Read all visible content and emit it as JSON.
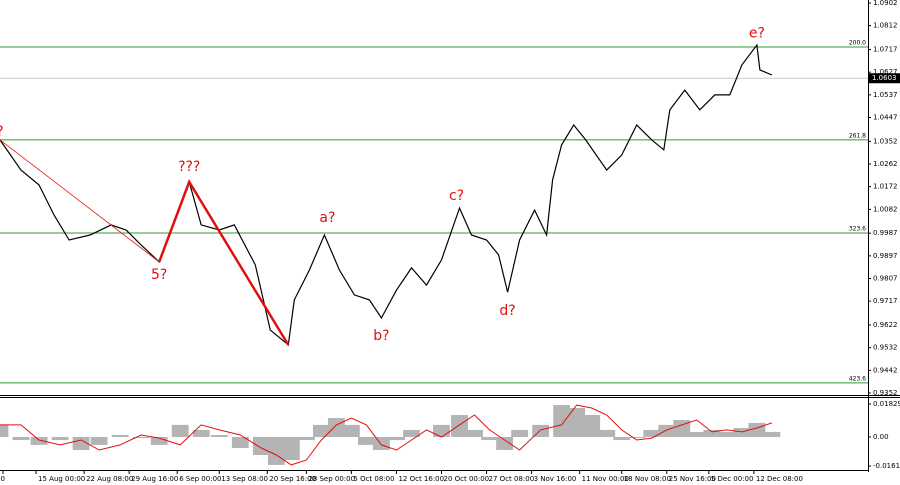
{
  "chart_data": [
    {
      "type": "line",
      "xlim": [
        0,
        289
      ],
      "ylim": [
        0.9344,
        1.0914
      ],
      "yticks": [
        1.0902,
        1.0812,
        1.0717,
        1.0627,
        1.0537,
        1.0447,
        1.0352,
        1.0262,
        1.0172,
        1.0082,
        0.9987,
        0.9897,
        0.9807,
        0.9717,
        0.9622,
        0.9532,
        0.9442,
        0.9352
      ],
      "xticks": [
        {
          "value": 1,
          "label": "00"
        },
        {
          "value": 12,
          "label": "15 Aug 00:00"
        },
        {
          "value": 28,
          "label": "22 Aug 08:00"
        },
        {
          "value": 43,
          "label": "29 Aug 16:00"
        },
        {
          "value": 59,
          "label": "6 Sep 00:00"
        },
        {
          "value": 73,
          "label": "13 Sep 08:00"
        },
        {
          "value": 89,
          "label": "20 Sep 16:00"
        },
        {
          "value": 102,
          "label": "28 Sep 00:00"
        },
        {
          "value": 117,
          "label": "5 Oct 08:00"
        },
        {
          "value": 132,
          "label": "12 Oct 16:00"
        },
        {
          "value": 147,
          "label": "20 Oct 00:00"
        },
        {
          "value": 162,
          "label": "27 Oct 08:00"
        },
        {
          "value": 177,
          "label": "3 Nov 16:00"
        },
        {
          "value": 193,
          "label": "11 Nov 00:00"
        },
        {
          "value": 207,
          "label": "18 Nov 08:00"
        },
        {
          "value": 222,
          "label": "25 Nov 16:00"
        },
        {
          "value": 236,
          "label": "5 Dec 00:00"
        },
        {
          "value": 251,
          "label": "12 Dec 08:00"
        }
      ],
      "x": [
        0,
        7,
        13,
        18,
        23,
        30,
        37,
        42,
        47,
        53,
        57,
        63,
        67,
        73,
        78,
        85,
        90,
        96,
        98,
        103,
        108,
        113,
        118,
        123,
        127,
        132,
        137,
        142,
        147,
        153,
        157,
        162,
        166,
        169,
        173,
        178,
        182,
        184,
        187,
        191,
        195,
        202,
        207,
        212,
        217,
        221,
        223,
        228,
        233,
        238,
        243,
        247,
        252,
        253,
        257
      ],
      "series": [
        {
          "color": "#000000",
          "values": [
            1.0358,
            1.0238,
            1.0179,
            1.0059,
            0.996,
            0.998,
            1.002,
            1.0,
            0.994,
            0.9873,
            1.0,
            1.0191,
            1.002,
            1.0,
            1.002,
            0.9861,
            0.9602,
            0.9543,
            0.9722,
            0.9841,
            0.998,
            0.9841,
            0.9742,
            0.9722,
            0.965,
            0.9761,
            0.9849,
            0.9781,
            0.9881,
            1.0087,
            0.998,
            0.996,
            0.9901,
            0.9753,
            0.996,
            1.0079,
            0.998,
            1.0199,
            1.0338,
            1.0417,
            1.0358,
            1.0238,
            1.0298,
            1.0417,
            1.0358,
            1.0318,
            1.0477,
            1.0556,
            1.0477,
            1.0537,
            1.0537,
            1.0656,
            1.0735,
            1.0636,
            1.0616
          ]
        }
      ],
      "current_price": 1.0603,
      "fib_levels": [
        {
          "label": "200.0",
          "value": 1.0727
        },
        {
          "label": "261.8",
          "value": 1.0358
        },
        {
          "label": "323.6",
          "value": 0.9988
        },
        {
          "label": "423.6",
          "value": 0.9392
        }
      ],
      "fib_color": "#2e9e2e",
      "wave_lines": [
        {
          "color": "#e01010",
          "x": [
            0,
            53
          ],
          "values": [
            1.0358,
            0.9873
          ]
        },
        {
          "color": "#e01010",
          "x": [
            53,
            63,
            96
          ],
          "values": [
            0.9873,
            1.0191,
            0.9543
          ]
        }
      ],
      "annotations": [
        {
          "text": "?",
          "x": 0,
          "y": 1.039
        },
        {
          "text": "5?",
          "x": 53,
          "y": 0.982
        },
        {
          "text": "???",
          "x": 63,
          "y": 1.025
        },
        {
          "text": "a?",
          "x": 109,
          "y": 1.0048
        },
        {
          "text": "b?",
          "x": 127,
          "y": 0.9578
        },
        {
          "text": "c?",
          "x": 152,
          "y": 1.0135
        },
        {
          "text": "d?",
          "x": 169,
          "y": 0.9678
        },
        {
          "text": "e?",
          "x": 252,
          "y": 1.078
        }
      ],
      "annotation_color": "#e01010"
    },
    {
      "type": "area",
      "xlim": [
        0,
        289
      ],
      "ylim": [
        -0.01832,
        0.02162
      ],
      "yticks": [
        0.01829,
        {
          "value": 0,
          "label": "0.00"
        },
        -0.0161
      ],
      "x": [
        0,
        7,
        13,
        20,
        27,
        33,
        40,
        47,
        53,
        60,
        67,
        73,
        80,
        87,
        92,
        97,
        102,
        107,
        112,
        117,
        122,
        127,
        132,
        137,
        142,
        147,
        153,
        158,
        163,
        168,
        173,
        180,
        187,
        192,
        197,
        202,
        207,
        212,
        217,
        222,
        227,
        232,
        237,
        242,
        247,
        252,
        257
      ],
      "series": [
        {
          "color": "#b4b4b4",
          "values": [
            0.0067,
            -0.0017,
            -0.0044,
            -0.0017,
            -0.0072,
            -0.0044,
            0.0011,
            -0.0006,
            -0.0044,
            0.0067,
            0.0039,
            0.0011,
            -0.0061,
            -0.01,
            -0.0155,
            -0.0128,
            -0.0017,
            0.0067,
            0.0105,
            0.0067,
            -0.0044,
            -0.0072,
            -0.0017,
            0.0039,
            0,
            0.0067,
            0.0122,
            0.0039,
            -0.0017,
            -0.0072,
            0.0039,
            0.0067,
            0.0177,
            0.0161,
            0.0122,
            0.0039,
            -0.0017,
            -0.0006,
            0.0039,
            0.0067,
            0.0094,
            0.0028,
            0.0039,
            0.0028,
            0.005,
            0.0078,
            0.0028
          ]
        },
        {
          "color": "#e01010",
          "values": [
            0.0067,
            0.0067,
            -0.0017,
            -0.0044,
            -0.0017,
            -0.0072,
            -0.0044,
            0.0011,
            -0.0006,
            -0.0044,
            0.0067,
            0.0039,
            0.0011,
            -0.0061,
            -0.01,
            -0.0155,
            -0.0128,
            -0.0017,
            0.0067,
            0.0105,
            0.0067,
            -0.0044,
            -0.0072,
            -0.0017,
            0.0039,
            0,
            0.0067,
            0.0122,
            0.0039,
            -0.0017,
            -0.0072,
            0.0039,
            0.0067,
            0.0177,
            0.0161,
            0.0122,
            0.0039,
            -0.0017,
            -0.0006,
            0.0039,
            0.0067,
            0.0094,
            0.0028,
            0.0039,
            0.0028,
            0.005,
            0.0078
          ]
        }
      ]
    }
  ]
}
